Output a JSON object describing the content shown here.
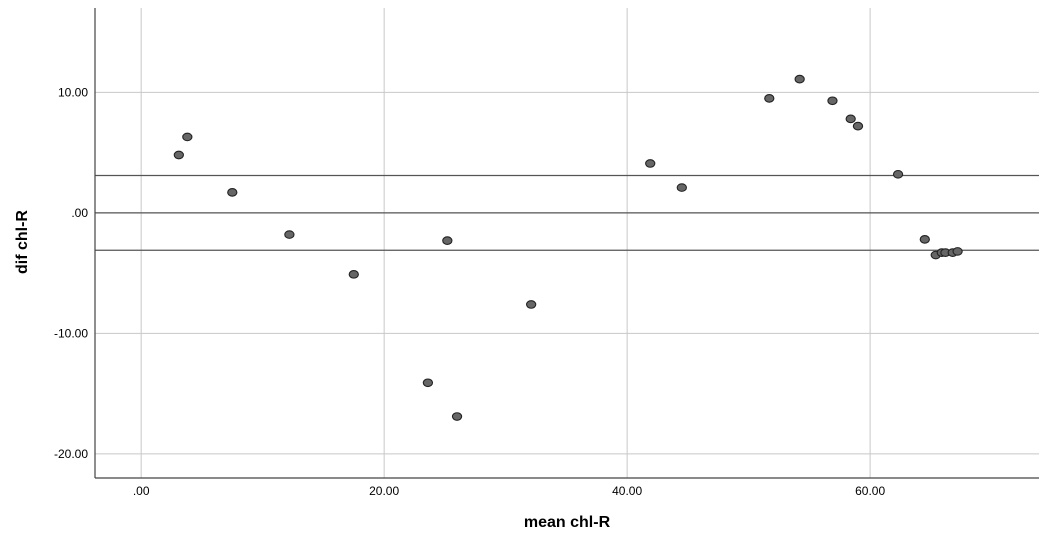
{
  "chart_data": {
    "type": "scatter",
    "title": "",
    "xlabel": "mean chl-R",
    "ylabel": "dif chl-R",
    "xlim": [
      -3.8,
      73.9
    ],
    "ylim": [
      -22.0,
      17.0
    ],
    "grid": true,
    "legend": "none",
    "x_ticks": [
      {
        "value": 0,
        "label": ".00"
      },
      {
        "value": 20,
        "label": "20.00"
      },
      {
        "value": 40,
        "label": "40.00"
      },
      {
        "value": 60,
        "label": "60.00"
      }
    ],
    "y_ticks": [
      {
        "value": 10,
        "label": "10.00"
      },
      {
        "value": 0,
        "label": ".00"
      },
      {
        "value": -10,
        "label": "-10.00"
      },
      {
        "value": -20,
        "label": "-20.00"
      }
    ],
    "reference_lines": [
      {
        "axis": "y",
        "value": 3.1
      },
      {
        "axis": "y",
        "value": 0.0
      },
      {
        "axis": "y",
        "value": -3.1
      }
    ],
    "series": [
      {
        "points": [
          {
            "x": 3.1,
            "y": 4.8
          },
          {
            "x": 3.8,
            "y": 6.3
          },
          {
            "x": 7.5,
            "y": 1.7
          },
          {
            "x": 12.2,
            "y": -1.8
          },
          {
            "x": 17.5,
            "y": -5.1
          },
          {
            "x": 23.6,
            "y": -14.1
          },
          {
            "x": 25.2,
            "y": -2.3
          },
          {
            "x": 26.0,
            "y": -16.9
          },
          {
            "x": 32.1,
            "y": -7.6
          },
          {
            "x": 41.9,
            "y": 4.1
          },
          {
            "x": 44.5,
            "y": 2.1
          },
          {
            "x": 51.7,
            "y": 9.5
          },
          {
            "x": 54.2,
            "y": 11.1
          },
          {
            "x": 56.9,
            "y": 9.3
          },
          {
            "x": 58.4,
            "y": 7.8
          },
          {
            "x": 59.0,
            "y": 7.2
          },
          {
            "x": 62.3,
            "y": 3.2
          },
          {
            "x": 64.5,
            "y": -2.2
          },
          {
            "x": 65.4,
            "y": -3.5
          },
          {
            "x": 65.9,
            "y": -3.3
          },
          {
            "x": 66.2,
            "y": -3.3
          },
          {
            "x": 66.8,
            "y": -3.3
          },
          {
            "x": 67.2,
            "y": -3.2
          }
        ]
      }
    ],
    "colors": {
      "point_fill": "#666666",
      "point_stroke": "#222222",
      "grid": "#c8c8c8",
      "reference_line": "#555555",
      "axis": "#444444"
    }
  }
}
